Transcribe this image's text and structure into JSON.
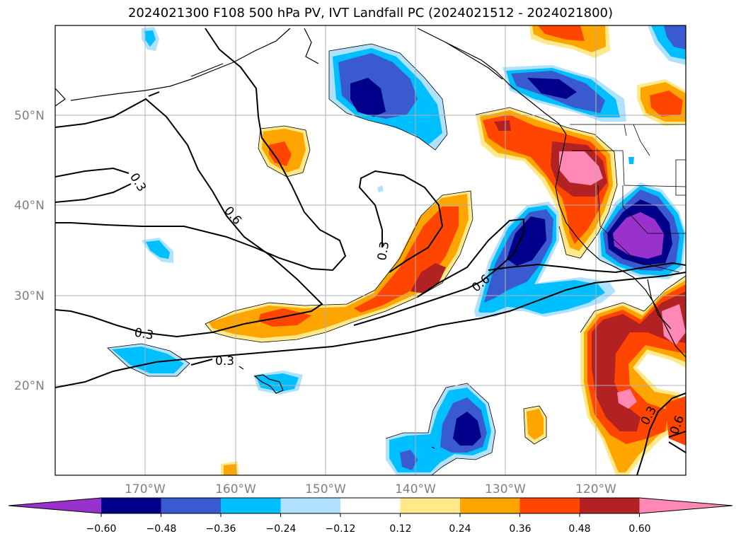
{
  "title": "2024021300 F108 500 hPa PV, IVT Landfall PC (2024021512 - 2024021800)",
  "map": {
    "lat_labels": [
      "50°N",
      "40°N",
      "30°N",
      "20°N"
    ],
    "lon_labels": [
      "170°W",
      "160°W",
      "150°W",
      "140°W",
      "130°W",
      "120°W"
    ],
    "contour_labels": [
      "0.3",
      "0.6",
      "0.3",
      "0.3",
      "0.3",
      "0.6",
      "0.3",
      "0.6"
    ]
  },
  "colorbar": {
    "tick_labels": [
      "−0.60",
      "−0.48",
      "−0.36",
      "−0.24",
      "−0.12",
      "0.12",
      "0.24",
      "0.36",
      "0.48",
      "0.60"
    ],
    "colors": [
      "#9932cc",
      "#00008b",
      "#3a5bcf",
      "#00bfff",
      "#b0e2ff",
      "#ffffff",
      "#ffe98a",
      "#ffa500",
      "#ff4500",
      "#b22222",
      "#ff88b4"
    ]
  }
}
